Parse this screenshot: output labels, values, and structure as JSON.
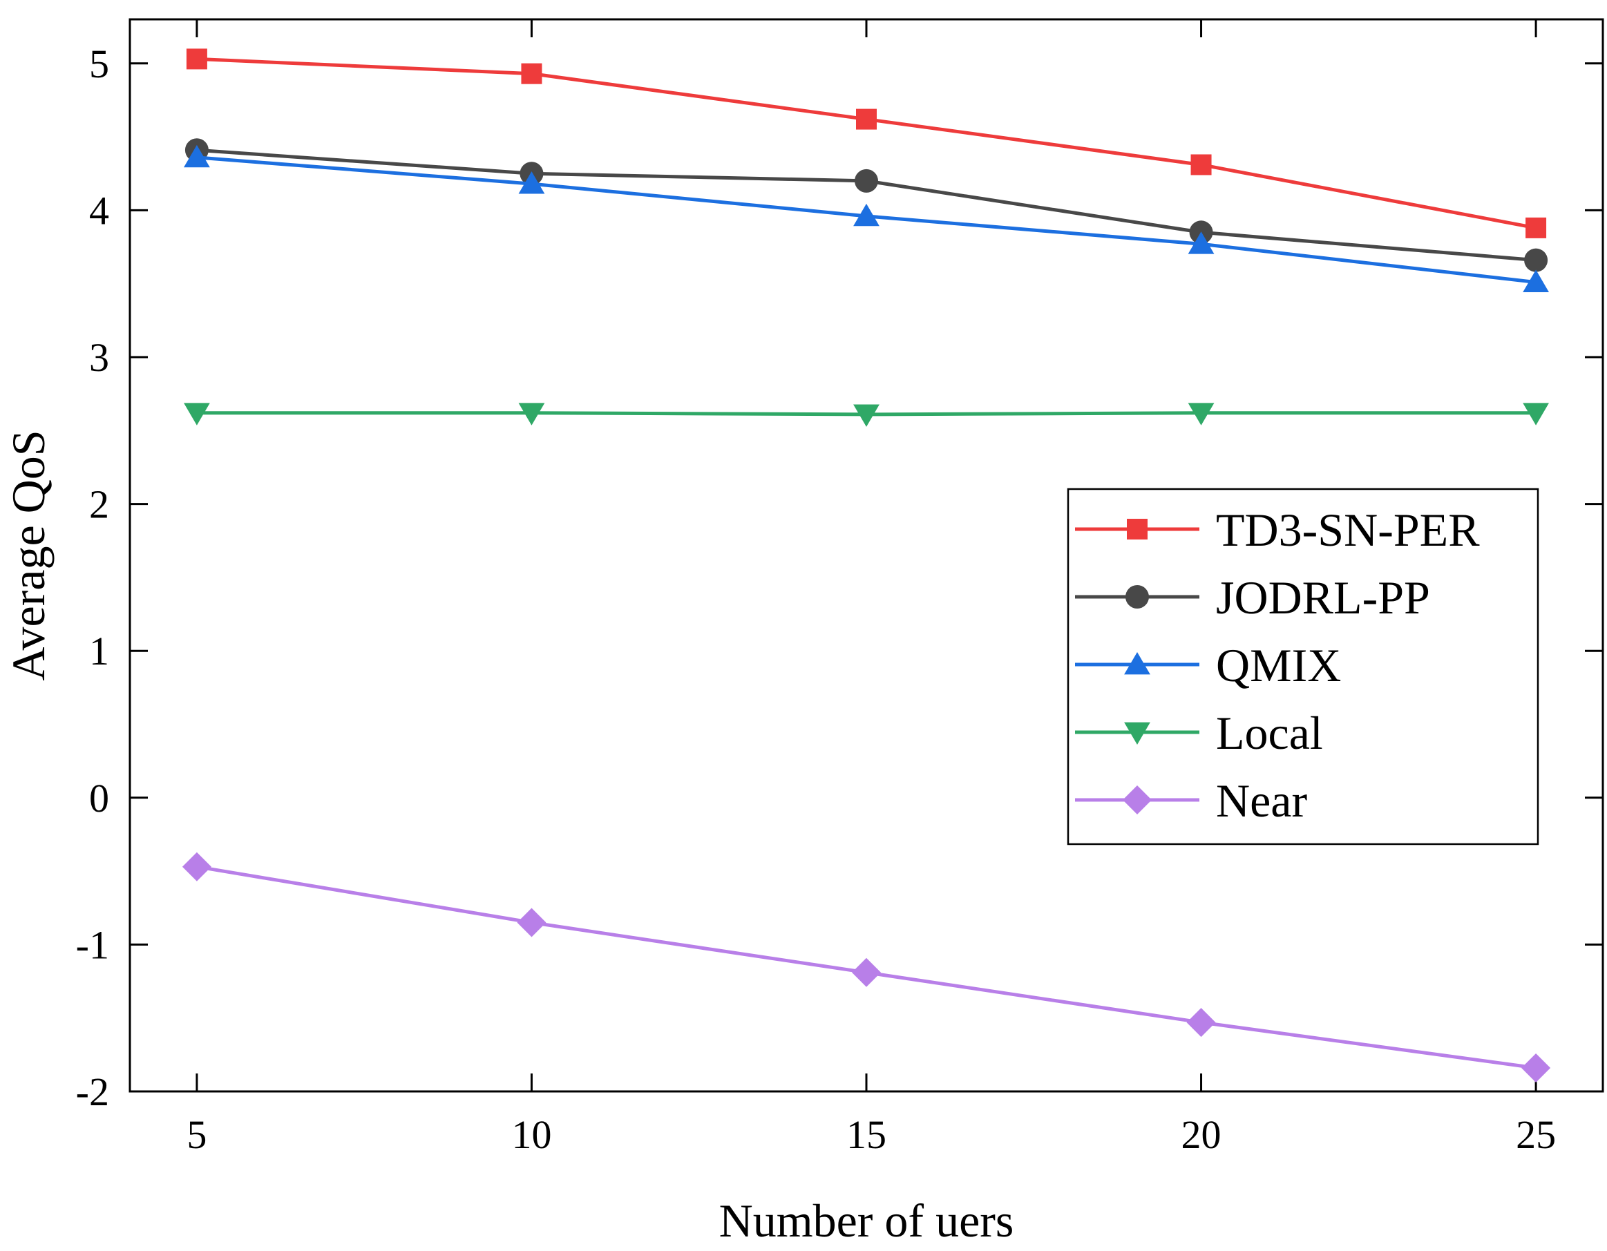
{
  "chart_data": {
    "type": "line",
    "title": "",
    "xlabel": "Number of uers",
    "ylabel": "Average QoS",
    "x": [
      5,
      10,
      15,
      20,
      25
    ],
    "xlim": [
      4,
      26
    ],
    "ylim": [
      -2,
      5.3
    ],
    "xticks": [
      5,
      10,
      15,
      20,
      25
    ],
    "yticks": [
      -2,
      -1,
      0,
      1,
      2,
      3,
      4,
      5
    ],
    "ytick_labels": [
      "-2",
      "-1",
      "0",
      "1",
      "2",
      "3",
      "4",
      "5"
    ],
    "grid": false,
    "legend_position": "center-right",
    "series": [
      {
        "name": "TD3-SN-PER",
        "color": "#ee3b3b",
        "marker": "square",
        "values": [
          5.03,
          4.93,
          4.62,
          4.31,
          3.88
        ]
      },
      {
        "name": "JODRL-PP",
        "color": "#484848",
        "marker": "circle",
        "values": [
          4.41,
          4.25,
          4.2,
          3.85,
          3.66
        ]
      },
      {
        "name": "QMIX",
        "color": "#1c6fe0",
        "marker": "triangle-up",
        "values": [
          4.36,
          4.18,
          3.96,
          3.77,
          3.51
        ]
      },
      {
        "name": "Local",
        "color": "#2fa866",
        "marker": "triangle-down",
        "values": [
          2.62,
          2.62,
          2.61,
          2.62,
          2.62
        ]
      },
      {
        "name": "Near",
        "color": "#b87fe8",
        "marker": "diamond",
        "values": [
          -0.47,
          -0.85,
          -1.19,
          -1.53,
          -1.84
        ]
      }
    ]
  }
}
